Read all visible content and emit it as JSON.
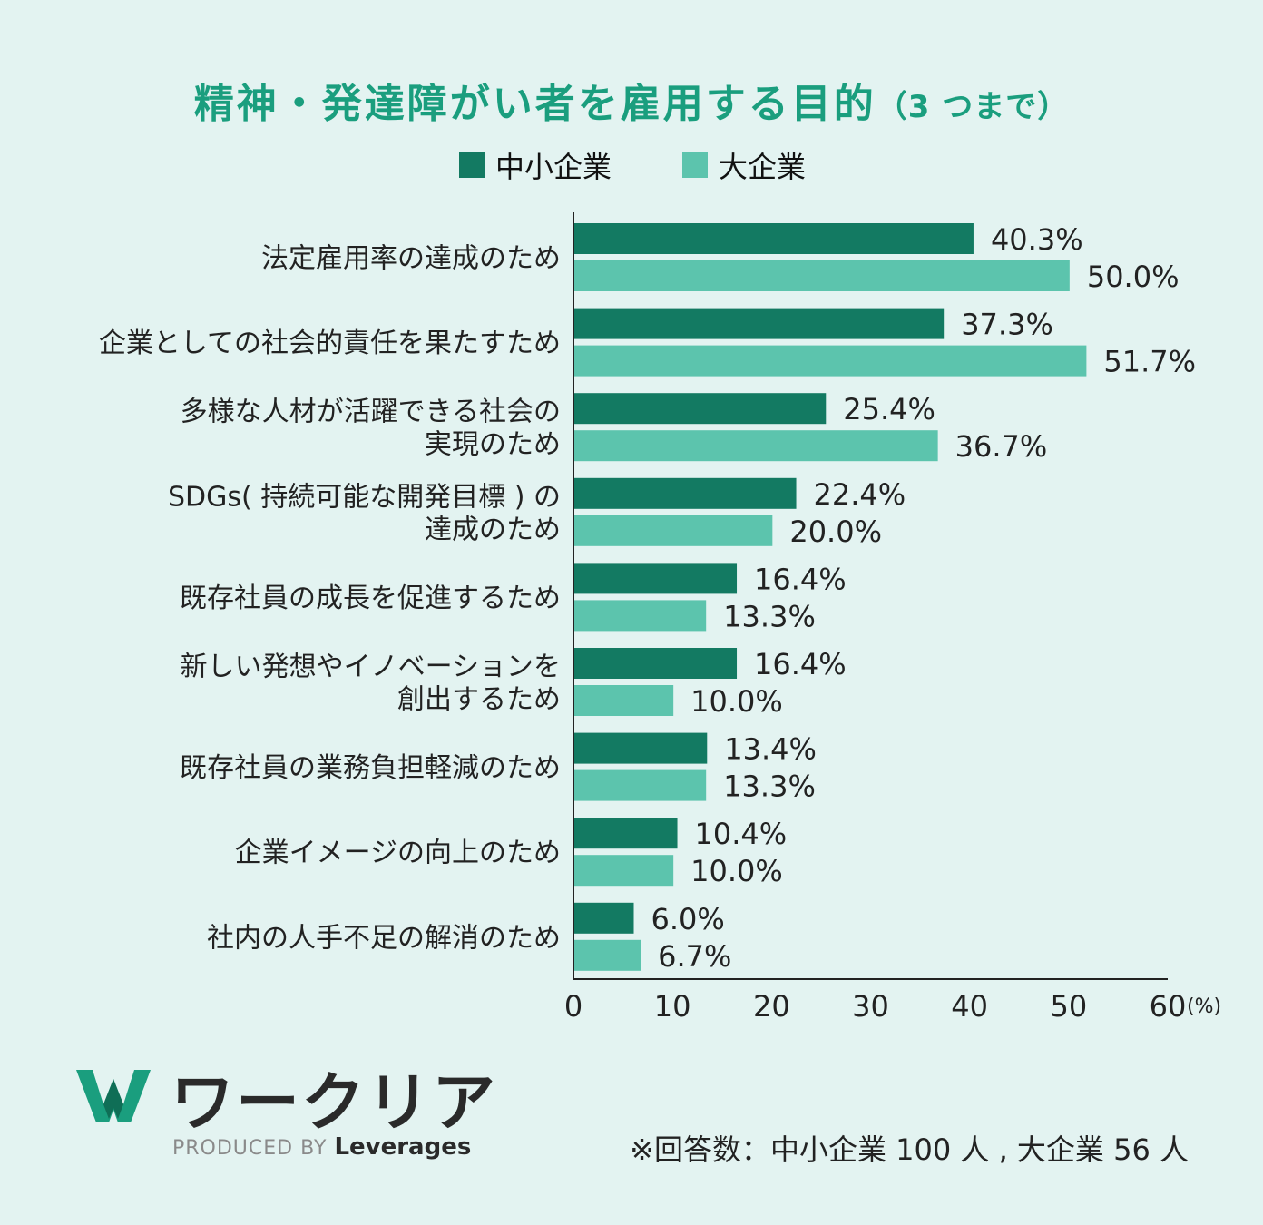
{
  "header": {
    "title": "精神・発達障がい者を雇用する目的",
    "title_sub": "（3 つまで）"
  },
  "colors": {
    "small_business": "#137a62",
    "large_business": "#5cc4ad",
    "title": "#1a9e7e"
  },
  "chart_data": {
    "type": "bar",
    "orientation": "horizontal",
    "categories": [
      [
        "法定雇用率の達成のため"
      ],
      [
        "企業としての社会的責任を果たすため"
      ],
      [
        "多様な人材が活躍できる社会の",
        "実現のため"
      ],
      [
        "SDGs( 持続可能な開発目標 ) の",
        "達成のため"
      ],
      [
        "既存社員の成長を促進するため"
      ],
      [
        "新しい発想やイノベーションを",
        "創出するため"
      ],
      [
        "既存社員の業務負担軽減のため"
      ],
      [
        "企業イメージの向上のため"
      ],
      [
        "社内の人手不足の解消のため"
      ]
    ],
    "series": [
      {
        "name": "中小企業",
        "values": [
          40.3,
          37.3,
          25.4,
          22.4,
          16.4,
          16.4,
          13.4,
          10.4,
          6.0
        ]
      },
      {
        "name": "大企業",
        "values": [
          50.0,
          51.7,
          36.7,
          20.0,
          13.3,
          10.0,
          13.3,
          10.0,
          6.7
        ]
      }
    ],
    "value_labels": [
      [
        "40.3%",
        "37.3%",
        "25.4%",
        "22.4%",
        "16.4%",
        "16.4%",
        "13.4%",
        "10.4%",
        "6.0%"
      ],
      [
        "50.0%",
        "51.7%",
        "36.7%",
        "20.0%",
        "13.3%",
        "10.0%",
        "13.3%",
        "10.0%",
        "6.7%"
      ]
    ],
    "xlim": [
      0,
      60
    ],
    "xticks": [
      "0",
      "10",
      "20",
      "30",
      "40",
      "50",
      "60"
    ],
    "x_unit": "(%)",
    "legend_position": "top-center",
    "grid": false
  },
  "logo": {
    "brand": "ワークリア",
    "produced_by": "PRODUCED BY",
    "company": "Leverages"
  },
  "footnote": "※回答数：中小企業 100 人 , 大企業 56 人"
}
